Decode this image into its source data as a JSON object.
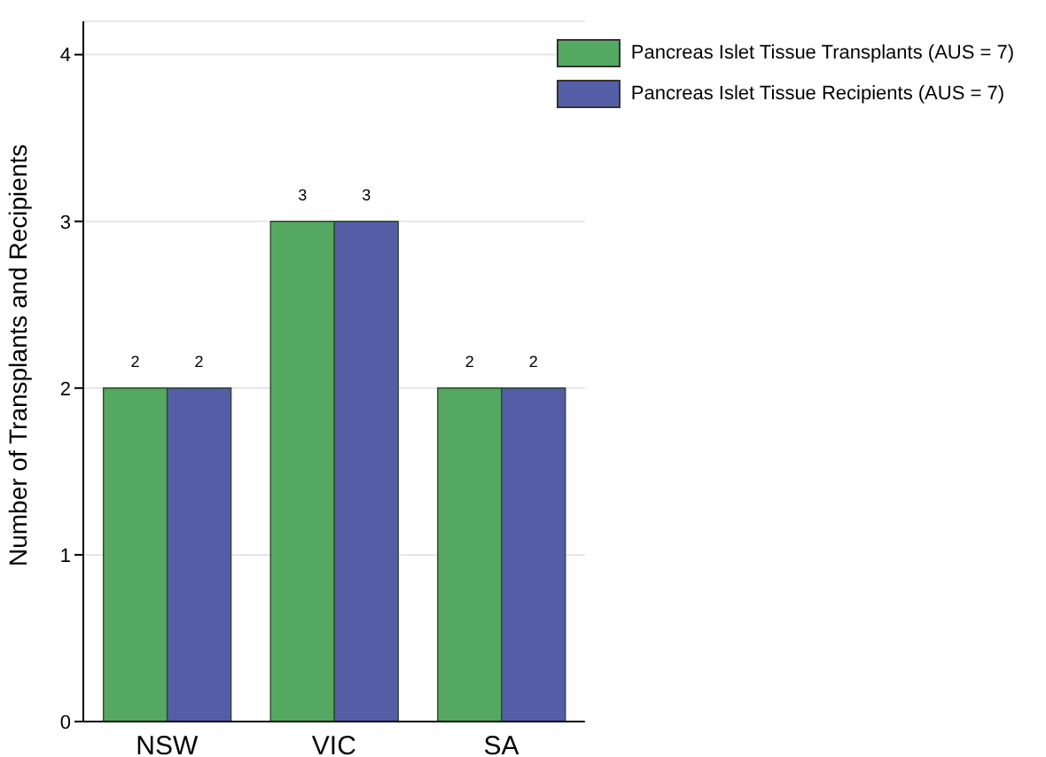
{
  "chart_data": {
    "type": "bar",
    "ylabel": "Number of Transplants and Recipients",
    "categories": [
      "NSW",
      "VIC",
      "SA"
    ],
    "series": [
      {
        "name": "Pancreas Islet Tissue Transplants (AUS = 7)",
        "color": "#55a862",
        "values": [
          2,
          3,
          2
        ]
      },
      {
        "name": "Pancreas Islet Tissue Recipients (AUS = 7)",
        "color": "#545ea6",
        "values": [
          2,
          3,
          2
        ]
      }
    ],
    "ylim": [
      0,
      4.2
    ],
    "yticks": [
      0,
      1,
      2,
      3,
      4
    ],
    "grid": "y",
    "legend": "top right",
    "data_labels": true
  }
}
